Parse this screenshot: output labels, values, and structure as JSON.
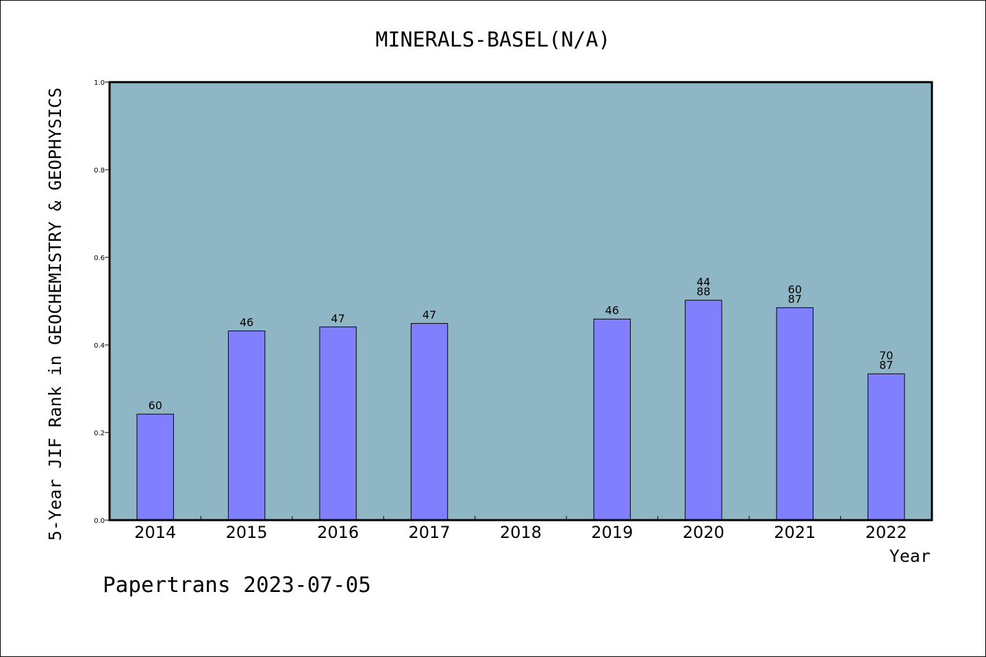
{
  "chart_data": {
    "type": "bar",
    "title": "MINERALS-BASEL(N/A)",
    "ylabel": "5-Year JIF Rank in GEOCHEMISTRY & GEOPHYSICS",
    "xlabel": "Year",
    "categories": [
      "2014",
      "2015",
      "2016",
      "2017",
      "2018",
      "2019",
      "2020",
      "2021",
      "2022"
    ],
    "values": [
      0.242,
      0.432,
      0.441,
      0.449,
      null,
      0.459,
      0.502,
      0.485,
      0.334
    ],
    "data_labels": [
      [
        "60"
      ],
      [
        "46"
      ],
      [
        "47"
      ],
      [
        "47"
      ],
      [],
      [
        "46"
      ],
      [
        "44",
        "88"
      ],
      [
        "60",
        "87"
      ],
      [
        "70",
        "87"
      ]
    ],
    "ylim": [
      0,
      1.0
    ],
    "yticks": [
      "0.0",
      "0.2",
      "0.4",
      "0.6",
      "0.8",
      "1.0"
    ],
    "grid": false,
    "colors": {
      "plot_background": "#8fb6c4",
      "bar_fill": "#8080ff",
      "bar_stroke": "#000000"
    }
  },
  "footer": "Papertrans 2023-07-05"
}
